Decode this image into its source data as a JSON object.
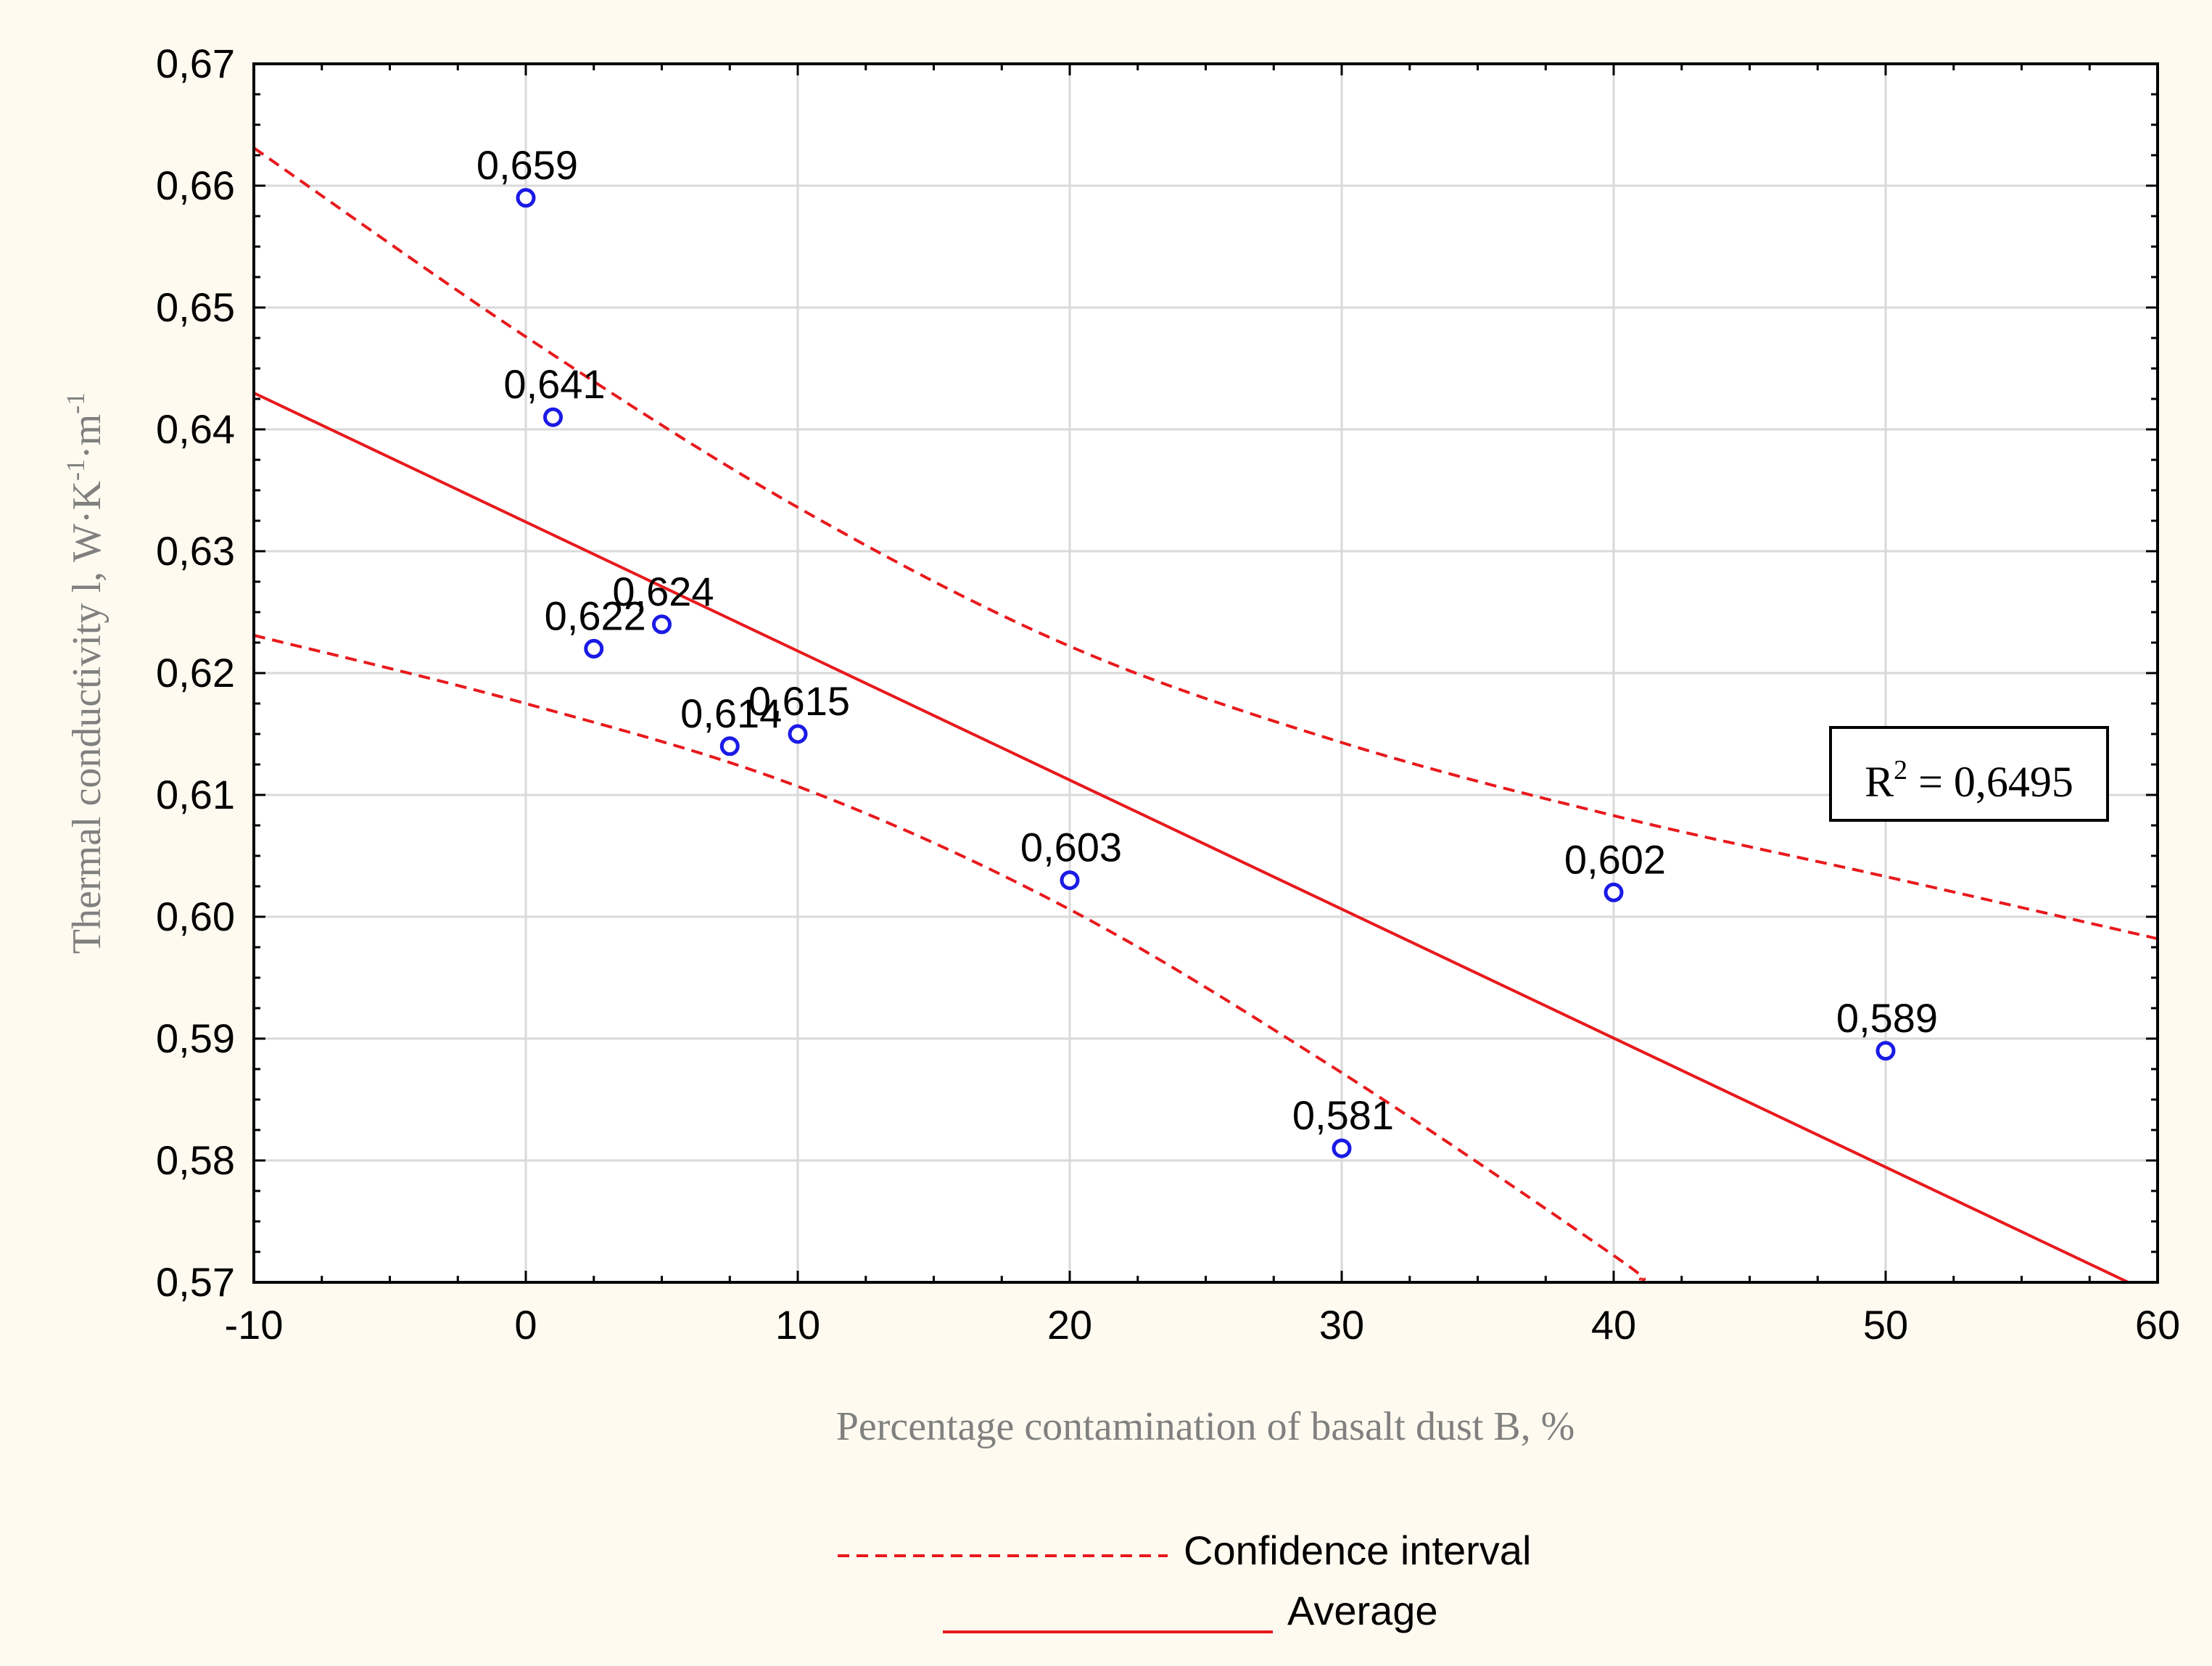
{
  "chart_data": {
    "type": "scatter",
    "title": "",
    "xlabel": "Percentage contamination of basalt dust B, %",
    "ylabel": "Thermal conductivity",
    "ylabel_symbol": "l",
    "ylabel_unit": "W·K",
    "ylabel_unit_exp1": "-1",
    "ylabel_unit_mid": "·m",
    "ylabel_unit_exp2": "-1",
    "xlim": [
      -10,
      60
    ],
    "ylim": [
      0.57,
      0.67
    ],
    "x_ticks": [
      -10,
      0,
      10,
      20,
      30,
      40,
      50,
      60
    ],
    "y_ticks": [
      0.57,
      0.58,
      0.59,
      0.6,
      0.61,
      0.62,
      0.63,
      0.64,
      0.65,
      0.66,
      0.67
    ],
    "x_tick_labels": [
      "-10",
      "0",
      "10",
      "20",
      "30",
      "40",
      "50",
      "60"
    ],
    "y_tick_labels": [
      "0,57",
      "0,58",
      "0,59",
      "0,60",
      "0,61",
      "0,62",
      "0,63",
      "0,64",
      "0,65",
      "0,66",
      "0,67"
    ],
    "grid": true,
    "points": [
      {
        "x": 0,
        "y": 0.659,
        "label": "0,659"
      },
      {
        "x": 1,
        "y": 0.641,
        "label": "0,641"
      },
      {
        "x": 2.5,
        "y": 0.622,
        "label": "0,622"
      },
      {
        "x": 5,
        "y": 0.624,
        "label": "0,624"
      },
      {
        "x": 7.5,
        "y": 0.614,
        "label": "0,614"
      },
      {
        "x": 10,
        "y": 0.615,
        "label": "0,615"
      },
      {
        "x": 20,
        "y": 0.603,
        "label": "0,603"
      },
      {
        "x": 30,
        "y": 0.581,
        "label": "0,581"
      },
      {
        "x": 40,
        "y": 0.602,
        "label": "0,602"
      },
      {
        "x": 50,
        "y": 0.589,
        "label": "0,589"
      }
    ],
    "regression": {
      "name": "Average",
      "intercept": 0.6324,
      "slope": -0.001059,
      "r2_label": "R",
      "r2_exp": "2",
      "r2_value": " = 0,6495"
    },
    "confidence_interval": {
      "name": "Confidence interval",
      "upper": [
        {
          "x": -10,
          "y": 0.6631
        },
        {
          "x": 0,
          "y": 0.6476
        },
        {
          "x": 10,
          "y": 0.6336
        },
        {
          "x": 20,
          "y": 0.6222
        },
        {
          "x": 30,
          "y": 0.6143
        },
        {
          "x": 40,
          "y": 0.6083
        },
        {
          "x": 50,
          "y": 0.6033
        },
        {
          "x": 60,
          "y": 0.5982
        }
      ],
      "lower": [
        {
          "x": -10,
          "y": 0.6231
        },
        {
          "x": 0,
          "y": 0.6175
        },
        {
          "x": 10,
          "y": 0.6107
        },
        {
          "x": 20,
          "y": 0.6006
        },
        {
          "x": 30,
          "y": 0.5872
        },
        {
          "x": 40,
          "y": 0.5722
        },
        {
          "x": 41,
          "y": 0.5702
        }
      ]
    },
    "legend": {
      "position": "bottom-center",
      "entries": [
        {
          "label": "Confidence interval",
          "style": "dashed"
        },
        {
          "label": "Average",
          "style": "solid"
        }
      ]
    },
    "colors": {
      "background": "#fffaf0",
      "plot": "#ffffff",
      "line": "#e8191c",
      "marker": "#1a1ae6",
      "grid": "#d9d9d9",
      "axis_label": "#808080",
      "text": "#000000"
    }
  }
}
